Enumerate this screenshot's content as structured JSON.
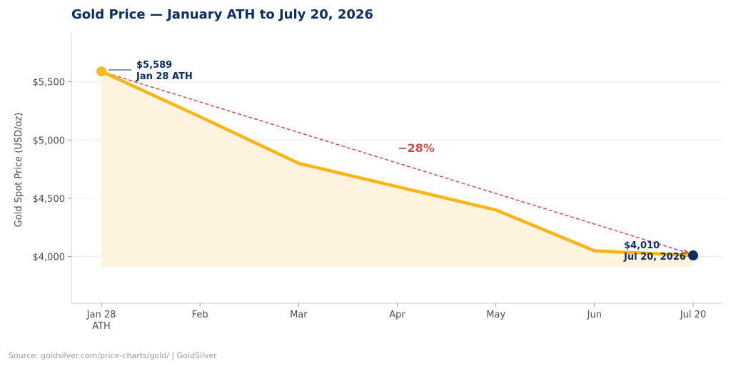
{
  "chart_data": {
    "type": "area",
    "title": "Gold Price — January ATH to July 20, 2026",
    "ylabel": "Gold Spot Price (USD/oz)",
    "xlabel": "",
    "categories": [
      "Jan 28\nATH",
      "Feb",
      "Mar",
      "Apr",
      "May",
      "Jun",
      "Jul 20"
    ],
    "series": [
      {
        "values": [
          5589,
          5200,
          4800,
          4600,
          4400,
          4050,
          4010
        ]
      }
    ],
    "ylim": [
      3600,
      5920
    ],
    "yticks": [
      4000,
      4500,
      5000,
      5500
    ],
    "ytick_labels": [
      "$4,000",
      "$4,500",
      "$5,000",
      "$5,500"
    ],
    "area_baseline": 3910,
    "grid": "horizontal",
    "annotations": {
      "start_value": "$5,589",
      "start_label": "Jan 28 ATH",
      "end_value": "$4,010",
      "end_label": "Jul 20, 2026",
      "change": "−28%"
    },
    "source": "Source: goldsilver.com/price-charts/gold/ | GoldSilver",
    "colors": {
      "line": "#fdb515",
      "fill": "#fdf3df",
      "trend": "#d24b4b",
      "start_dot": "#fbb921",
      "end_dot": "#0c2d66",
      "annotation": "#0c2d66",
      "title": "#0c2d66",
      "axis_text": "#4d4d4d",
      "grid": "#ececec",
      "source": "#999999"
    }
  }
}
